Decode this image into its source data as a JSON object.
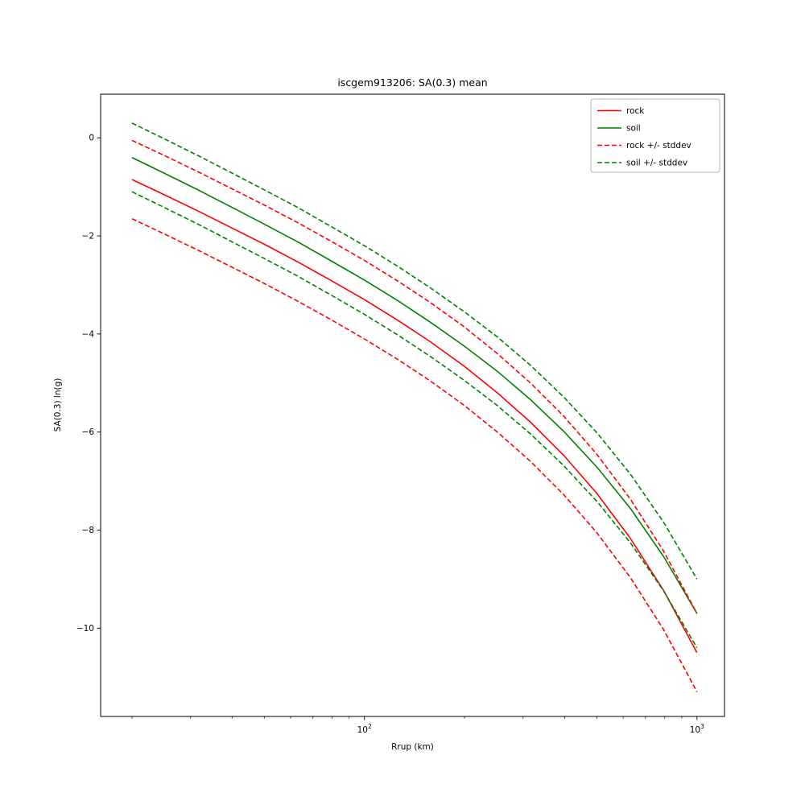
{
  "chart_data": {
    "type": "line",
    "title": "iscgem913206: SA(0.3) mean",
    "xlabel": "Rrup (km)",
    "ylabel": "SA(0.3) ln(g)",
    "xscale": "log",
    "xlim": [
      16.1,
      1210
    ],
    "ylim": [
      -11.8,
      0.89
    ],
    "grid": false,
    "legend_position": "upper right",
    "xticks": [
      {
        "v": 100,
        "base": "10",
        "exp": "2"
      },
      {
        "v": 1000,
        "base": "10",
        "exp": "3"
      }
    ],
    "xminorticks": [
      20,
      30,
      40,
      50,
      60,
      70,
      80,
      90,
      200,
      300,
      400,
      500,
      600,
      700,
      800,
      900
    ],
    "yticks": [
      0,
      -2,
      -4,
      -6,
      -8,
      -10
    ],
    "x": [
      20,
      25,
      32,
      40,
      50,
      63,
      79,
      100,
      126,
      158,
      200,
      251,
      316,
      398,
      501,
      631,
      794,
      1000
    ],
    "series": [
      {
        "name": "rock",
        "color": "#ff0000",
        "dash": "solid",
        "values": [
          -0.85,
          -1.16,
          -1.51,
          -1.84,
          -2.17,
          -2.53,
          -2.9,
          -3.3,
          -3.72,
          -4.16,
          -4.66,
          -5.2,
          -5.8,
          -6.48,
          -7.26,
          -8.17,
          -9.23,
          -10.5
        ]
      },
      {
        "name": "soil",
        "color": "#008000",
        "dash": "solid",
        "values": [
          -0.4,
          -0.72,
          -1.08,
          -1.42,
          -1.76,
          -2.12,
          -2.5,
          -2.9,
          -3.32,
          -3.76,
          -4.25,
          -4.76,
          -5.34,
          -5.99,
          -6.72,
          -7.56,
          -8.54,
          -9.7
        ]
      },
      {
        "name": "rock + stddev",
        "color": "#ff0000",
        "dash": "dashed",
        "values": [
          -0.05,
          -0.36,
          -0.71,
          -1.04,
          -1.37,
          -1.73,
          -2.1,
          -2.5,
          -2.92,
          -3.36,
          -3.86,
          -4.4,
          -5.0,
          -5.68,
          -6.46,
          -7.37,
          -8.43,
          -9.7
        ]
      },
      {
        "name": "rock - stddev",
        "color": "#ff0000",
        "dash": "dashed",
        "values": [
          -1.65,
          -1.96,
          -2.31,
          -2.64,
          -2.97,
          -3.33,
          -3.7,
          -4.1,
          -4.52,
          -4.96,
          -5.46,
          -6.0,
          -6.6,
          -7.28,
          -8.06,
          -8.97,
          -10.03,
          -11.3
        ]
      },
      {
        "name": "soil + stddev",
        "color": "#008000",
        "dash": "dashed",
        "values": [
          0.3,
          -0.02,
          -0.38,
          -0.72,
          -1.06,
          -1.42,
          -1.8,
          -2.2,
          -2.62,
          -3.06,
          -3.55,
          -4.06,
          -4.64,
          -5.29,
          -6.02,
          -6.86,
          -7.84,
          -9.0
        ]
      },
      {
        "name": "soil - stddev",
        "color": "#008000",
        "dash": "dashed",
        "values": [
          -1.1,
          -1.42,
          -1.78,
          -2.12,
          -2.46,
          -2.82,
          -3.2,
          -3.6,
          -4.02,
          -4.46,
          -4.95,
          -5.46,
          -6.04,
          -6.69,
          -7.42,
          -8.26,
          -9.24,
          -10.4
        ]
      }
    ],
    "legend": [
      {
        "label": "rock",
        "color": "#ff0000",
        "dash": "solid"
      },
      {
        "label": "soil",
        "color": "#008000",
        "dash": "solid"
      },
      {
        "label": "rock +/- stddev",
        "color": "#ff0000",
        "dash": "dashed"
      },
      {
        "label": "soil +/- stddev",
        "color": "#008000",
        "dash": "dashed"
      }
    ]
  }
}
